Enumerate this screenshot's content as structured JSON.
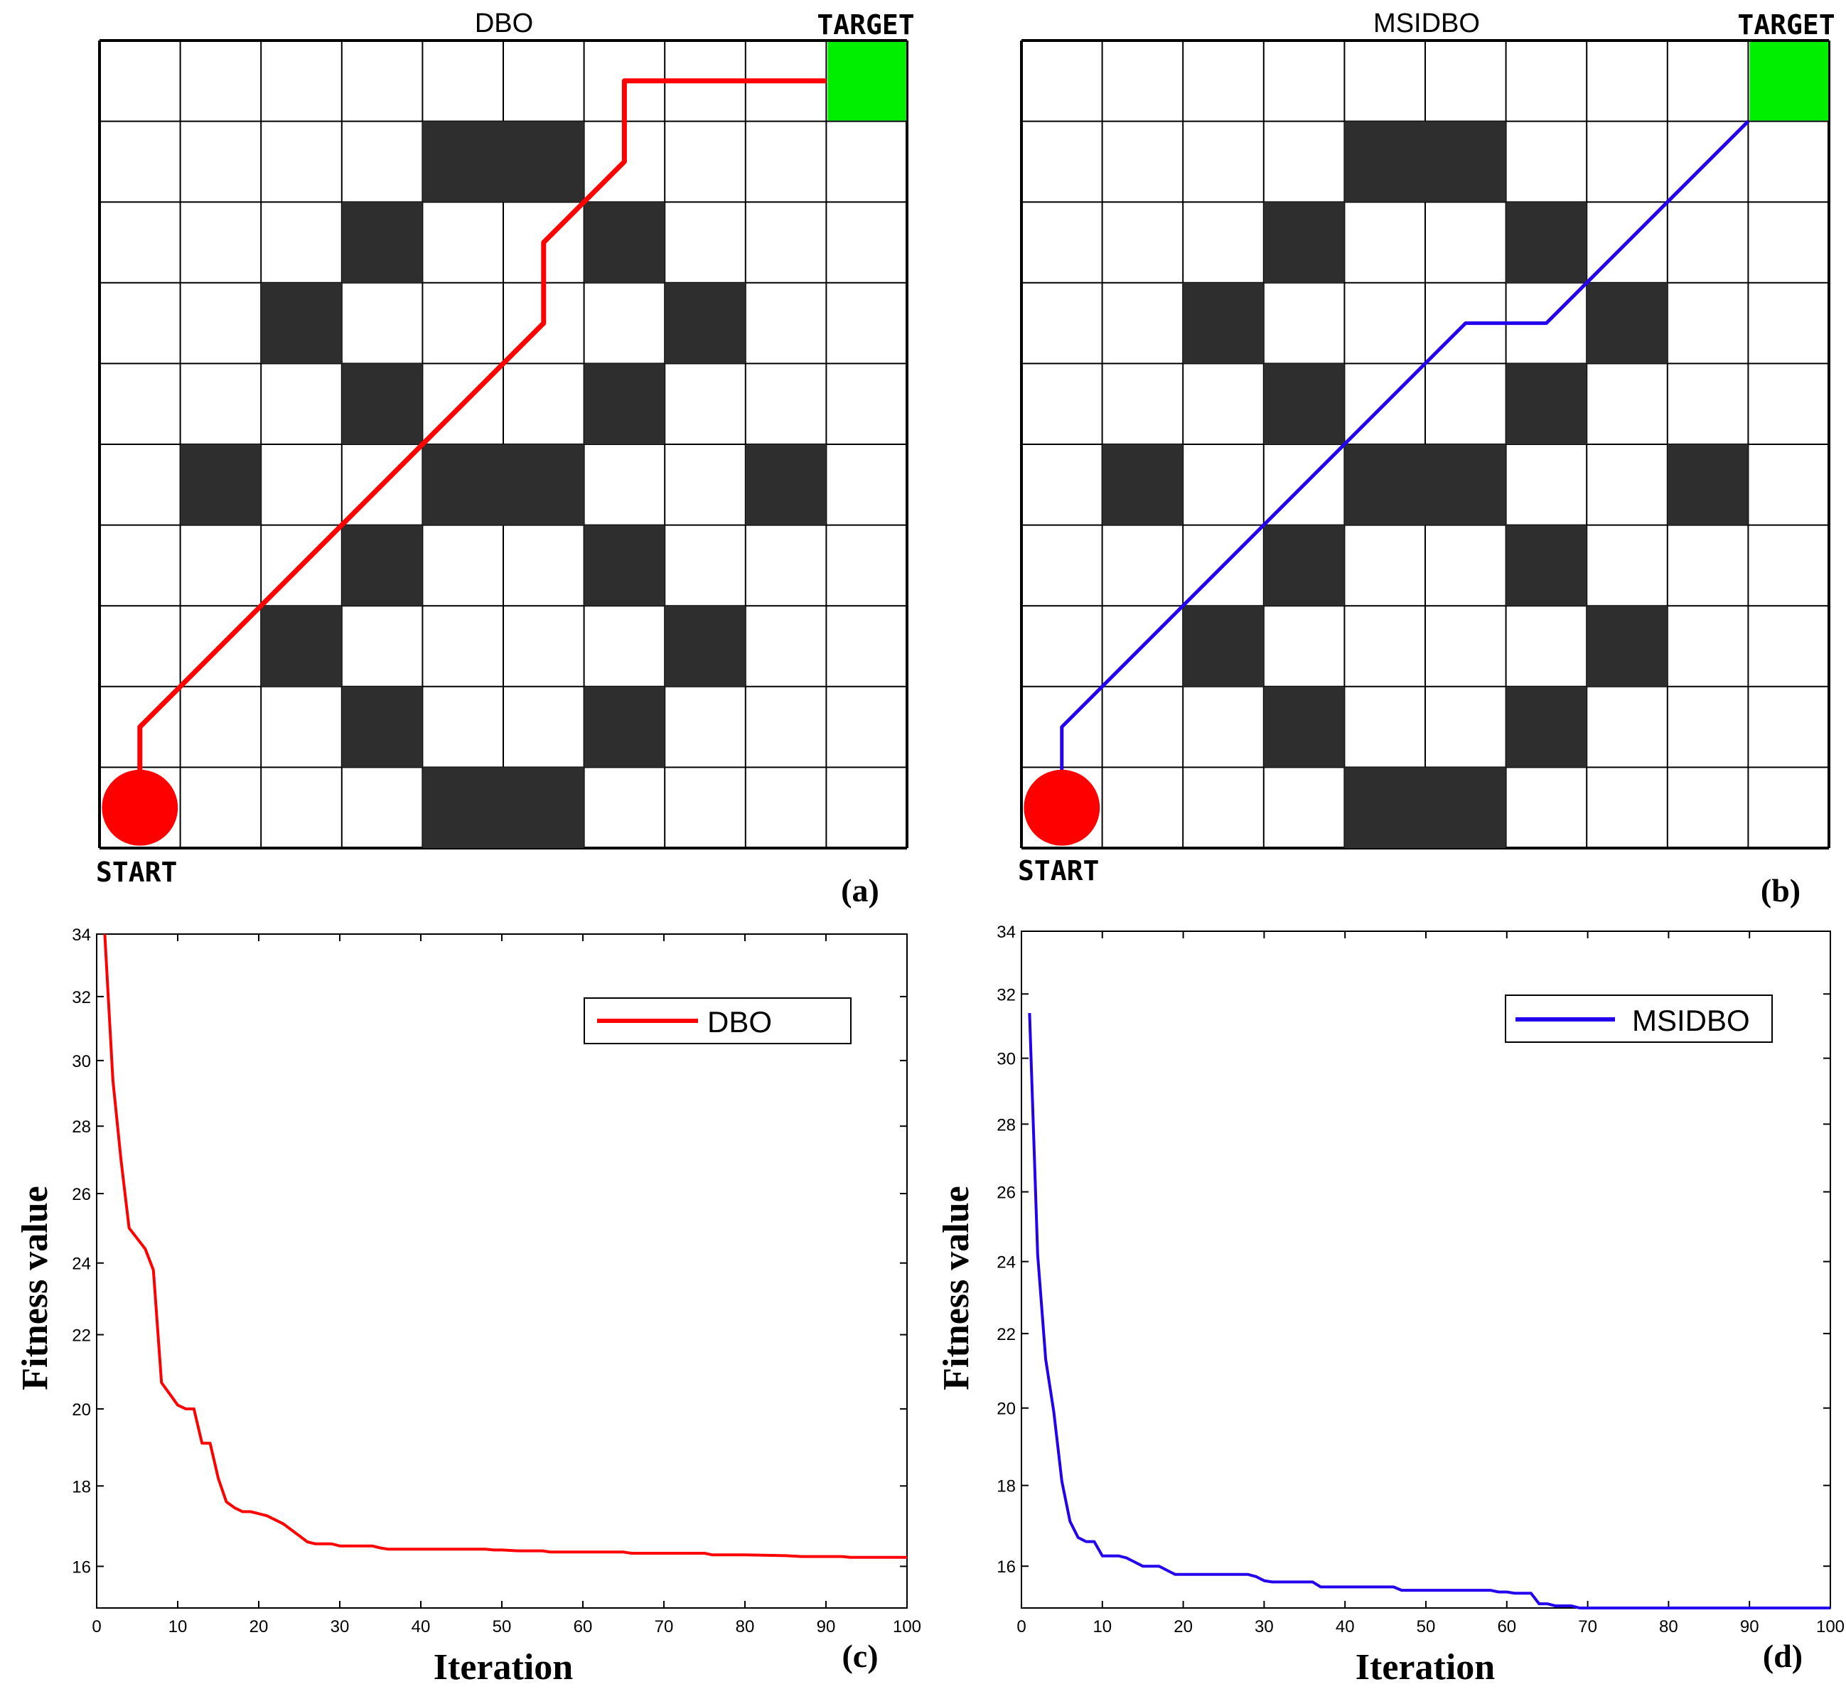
{
  "chart_data": [
    {
      "panel": "(a)",
      "type": "grid-path",
      "title": "DBO",
      "start_label": "START",
      "target_label": "TARGET",
      "grid_size": 10,
      "obstacles": [
        [
          4,
          1
        ],
        [
          5,
          1
        ],
        [
          3,
          2
        ],
        [
          6,
          2
        ],
        [
          2,
          3
        ],
        [
          7,
          3
        ],
        [
          3,
          4
        ],
        [
          6,
          4
        ],
        [
          1,
          5
        ],
        [
          4,
          5
        ],
        [
          5,
          5
        ],
        [
          8,
          5
        ],
        [
          3,
          6
        ],
        [
          6,
          6
        ],
        [
          2,
          7
        ],
        [
          7,
          7
        ],
        [
          3,
          8
        ],
        [
          6,
          8
        ],
        [
          4,
          9
        ],
        [
          5,
          9
        ]
      ],
      "path": [
        [
          0.5,
          9.5
        ],
        [
          0.5,
          8.5
        ],
        [
          1.0,
          8.0
        ],
        [
          2.0,
          7.0
        ],
        [
          3.0,
          6.0
        ],
        [
          4.0,
          5.0
        ],
        [
          5.0,
          4.0
        ],
        [
          5.5,
          3.5
        ],
        [
          5.5,
          2.5
        ],
        [
          6.0,
          2.0
        ],
        [
          6.5,
          1.5
        ],
        [
          6.5,
          0.5
        ],
        [
          9.0,
          0.5
        ]
      ],
      "path_color": "#ff0000",
      "start_color": "#ff0000",
      "target_color": "#00ee00"
    },
    {
      "panel": "(b)",
      "type": "grid-path",
      "title": "MSIDBO",
      "start_label": "START",
      "target_label": "TARGET",
      "grid_size": 10,
      "obstacles": [
        [
          4,
          1
        ],
        [
          5,
          1
        ],
        [
          3,
          2
        ],
        [
          6,
          2
        ],
        [
          2,
          3
        ],
        [
          7,
          3
        ],
        [
          3,
          4
        ],
        [
          6,
          4
        ],
        [
          1,
          5
        ],
        [
          4,
          5
        ],
        [
          5,
          5
        ],
        [
          8,
          5
        ],
        [
          3,
          6
        ],
        [
          6,
          6
        ],
        [
          2,
          7
        ],
        [
          7,
          7
        ],
        [
          3,
          8
        ],
        [
          6,
          8
        ],
        [
          4,
          9
        ],
        [
          5,
          9
        ]
      ],
      "path": [
        [
          0.5,
          9.5
        ],
        [
          0.5,
          8.5
        ],
        [
          1.0,
          8.0
        ],
        [
          2.0,
          7.0
        ],
        [
          3.0,
          6.0
        ],
        [
          4.0,
          5.0
        ],
        [
          5.0,
          4.0
        ],
        [
          5.5,
          3.5
        ],
        [
          6.5,
          3.5
        ],
        [
          7.0,
          3.0
        ],
        [
          8.0,
          2.0
        ],
        [
          9.0,
          1.0
        ]
      ],
      "path_color": "#2200ee",
      "start_color": "#ff0000",
      "target_color": "#00ee00"
    },
    {
      "panel": "(c)",
      "type": "line",
      "xlabel": "Iteration",
      "ylabel": "Fitness value",
      "xlim": [
        0,
        100
      ],
      "ylim": [
        15,
        34
      ],
      "xticks": [
        0,
        10,
        20,
        30,
        40,
        50,
        60,
        70,
        80,
        90,
        100
      ],
      "yticks": [
        16,
        18,
        20,
        22,
        24,
        26,
        28,
        30,
        32,
        34
      ],
      "legend_position": "top-right",
      "series": [
        {
          "name": "DBO",
          "color": "#ff0000",
          "x": [
            1,
            2,
            3,
            4,
            5,
            6,
            7,
            8,
            9,
            10,
            11,
            12,
            13,
            14,
            15,
            16,
            17,
            18,
            19,
            20,
            21,
            22,
            23,
            24,
            25,
            26,
            27,
            28,
            29,
            30,
            31,
            32,
            33,
            34,
            35,
            36,
            38,
            40,
            45,
            48,
            49,
            50,
            52,
            53,
            55,
            56,
            60,
            65,
            66,
            70,
            75,
            76,
            80,
            85,
            87,
            90,
            92,
            93,
            95,
            100
          ],
          "y": [
            34.0,
            29.4,
            27.0,
            25.0,
            24.7,
            24.4,
            23.8,
            20.7,
            20.4,
            20.1,
            20.0,
            20.0,
            19.1,
            19.1,
            18.2,
            17.6,
            17.45,
            17.35,
            17.35,
            17.3,
            17.25,
            17.15,
            17.05,
            16.9,
            16.75,
            16.6,
            16.55,
            16.55,
            16.55,
            16.5,
            16.5,
            16.5,
            16.5,
            16.5,
            16.45,
            16.42,
            16.42,
            16.42,
            16.42,
            16.42,
            16.4,
            16.4,
            16.38,
            16.38,
            16.38,
            16.35,
            16.35,
            16.35,
            16.32,
            16.32,
            16.32,
            16.28,
            16.28,
            16.26,
            16.24,
            16.24,
            16.24,
            16.22,
            16.22,
            16.22
          ]
        }
      ]
    },
    {
      "panel": "(d)",
      "type": "line",
      "xlabel": "Iteration",
      "ylabel": "Fitness value",
      "xlim": [
        0,
        100
      ],
      "ylim": [
        15,
        34
      ],
      "xticks": [
        0,
        10,
        20,
        30,
        40,
        50,
        60,
        70,
        80,
        90,
        100
      ],
      "yticks": [
        16,
        18,
        20,
        22,
        24,
        26,
        28,
        30,
        32,
        34
      ],
      "legend_position": "top-right",
      "series": [
        {
          "name": "MSIDBO",
          "color": "#2200ee",
          "x": [
            1,
            2,
            3,
            4,
            5,
            6,
            7,
            8,
            9,
            10,
            11,
            12,
            13,
            14,
            15,
            16,
            17,
            18,
            19,
            20,
            21,
            25,
            28,
            29,
            30,
            31,
            33,
            34,
            36,
            37,
            40,
            45,
            46,
            47,
            50,
            55,
            58,
            59,
            60,
            61,
            63,
            64,
            65,
            66,
            67,
            68,
            69,
            70,
            75,
            80,
            85,
            90,
            91,
            92,
            95,
            100
          ],
          "y": [
            31.4,
            24.2,
            21.3,
            19.9,
            18.1,
            17.1,
            16.7,
            16.6,
            16.6,
            16.25,
            16.25,
            16.25,
            16.2,
            16.1,
            16.0,
            16.0,
            16.0,
            15.9,
            15.8,
            15.8,
            15.8,
            15.8,
            15.8,
            15.75,
            15.65,
            15.62,
            15.62,
            15.62,
            15.62,
            15.5,
            15.5,
            15.5,
            15.5,
            15.42,
            15.42,
            15.42,
            15.42,
            15.38,
            15.38,
            15.35,
            15.35,
            15.1,
            15.1,
            15.05,
            15.05,
            15.05,
            15.0,
            15.0,
            15.0,
            15.0,
            15.0,
            15.0,
            15.0,
            15.0,
            15.0,
            15.0
          ]
        }
      ]
    }
  ]
}
